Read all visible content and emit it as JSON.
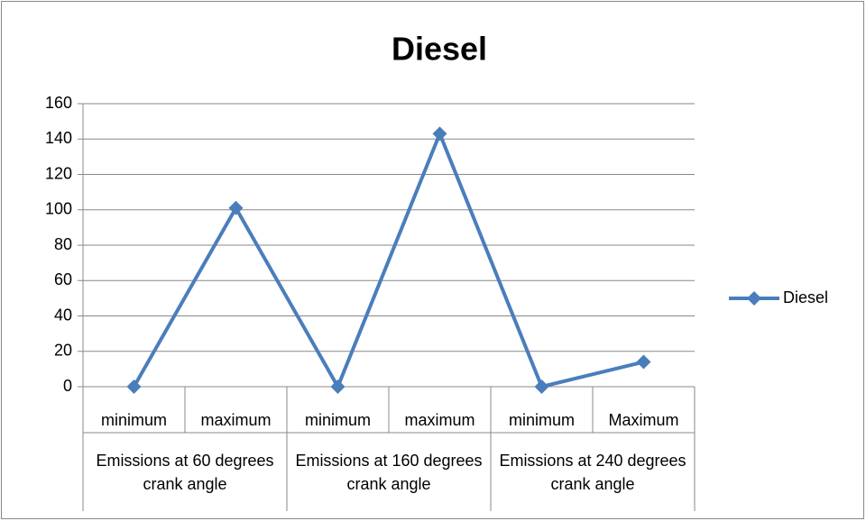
{
  "chart_data": {
    "type": "line",
    "title": "Diesel",
    "categories": [
      "minimum",
      "maximum",
      "minimum",
      "maximum",
      "minimum",
      "Maximum"
    ],
    "groups": [
      "Emissions at 60 degrees crank angle",
      "Emissions at 160 degrees crank angle",
      "Emissions at 240 degrees crank angle"
    ],
    "series": [
      {
        "name": "Diesel",
        "color": "#4a7ebb",
        "values": [
          0,
          101,
          0,
          143,
          0,
          14
        ]
      }
    ],
    "ylim": [
      0,
      160
    ],
    "yticks": [
      0,
      20,
      40,
      60,
      80,
      100,
      120,
      140,
      160
    ],
    "grid": true,
    "legend": "right"
  }
}
